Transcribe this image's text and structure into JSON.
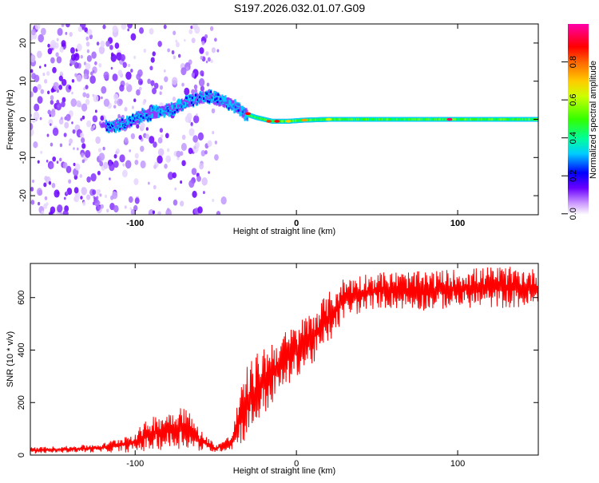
{
  "figure": {
    "title": "S197.2026.032.01.07.G09"
  },
  "chart_data": [
    {
      "type": "heatmap",
      "xlabel": "Height of straight line (km)",
      "ylabel": "Frequency (Hz)",
      "xlim": [
        -165,
        150
      ],
      "ylim": [
        -25,
        25
      ],
      "xticks": [
        -100,
        0,
        100
      ],
      "yticks": [
        20,
        10,
        0,
        -10,
        -20
      ],
      "colorbar": {
        "label": "Normalized spectral amplitude",
        "range": [
          0,
          1
        ],
        "ticks": [
          0.0,
          0.2,
          0.4,
          0.6,
          0.8
        ],
        "colors": [
          "#ffffff",
          "#cc99ff",
          "#6a00ff",
          "#0000ff",
          "#00ccff",
          "#00ff66",
          "#66ff00",
          "#ffff00",
          "#ff9900",
          "#ff0000",
          "#ff0066",
          "#ff00aa"
        ]
      },
      "ridge": {
        "description_free_values": true,
        "points": [
          {
            "x": -115,
            "y": -2
          },
          {
            "x": -105,
            "y": -1
          },
          {
            "x": -95,
            "y": 1
          },
          {
            "x": -85,
            "y": 2
          },
          {
            "x": -75,
            "y": 3
          },
          {
            "x": -65,
            "y": 5
          },
          {
            "x": -55,
            "y": 6
          },
          {
            "x": -48,
            "y": 5
          },
          {
            "x": -40,
            "y": 4
          },
          {
            "x": -32,
            "y": 1.5
          },
          {
            "x": -25,
            "y": 0.5
          },
          {
            "x": -15,
            "y": -0.5
          },
          {
            "x": -5,
            "y": -0.5
          },
          {
            "x": 5,
            "y": -0.2
          },
          {
            "x": 20,
            "y": 0
          },
          {
            "x": 60,
            "y": 0
          },
          {
            "x": 100,
            "y": 0
          },
          {
            "x": 150,
            "y": 0
          }
        ],
        "peak_amplitude": 0.95,
        "peak_x": 95
      },
      "grid": false
    },
    {
      "type": "line",
      "xlabel": "Height of straight line (km)",
      "ylabel": "SNR (10 * v/v)",
      "xlim": [
        -165,
        150
      ],
      "ylim": [
        0,
        730
      ],
      "xticks": [
        -100,
        0,
        100
      ],
      "yticks": [
        0,
        200,
        400,
        600
      ],
      "color": "#ff0000",
      "series": [
        {
          "envelope": [
            {
              "x": -165,
              "lo": 5,
              "hi": 30
            },
            {
              "x": -140,
              "lo": 10,
              "hi": 35
            },
            {
              "x": -120,
              "lo": 10,
              "hi": 45
            },
            {
              "x": -100,
              "lo": 10,
              "hi": 90
            },
            {
              "x": -90,
              "lo": 15,
              "hi": 150
            },
            {
              "x": -80,
              "lo": 20,
              "hi": 170
            },
            {
              "x": -70,
              "lo": 25,
              "hi": 200
            },
            {
              "x": -60,
              "lo": 15,
              "hi": 100
            },
            {
              "x": -50,
              "lo": 10,
              "hi": 40
            },
            {
              "x": -40,
              "lo": 20,
              "hi": 80
            },
            {
              "x": -35,
              "lo": 40,
              "hi": 250
            },
            {
              "x": -30,
              "lo": 60,
              "hi": 350
            },
            {
              "x": -20,
              "lo": 150,
              "hi": 420
            },
            {
              "x": -10,
              "lo": 230,
              "hi": 460
            },
            {
              "x": 0,
              "lo": 300,
              "hi": 500
            },
            {
              "x": 10,
              "lo": 340,
              "hi": 560
            },
            {
              "x": 20,
              "lo": 420,
              "hi": 620
            },
            {
              "x": 30,
              "lo": 520,
              "hi": 680
            },
            {
              "x": 50,
              "lo": 560,
              "hi": 700
            },
            {
              "x": 80,
              "lo": 550,
              "hi": 700
            },
            {
              "x": 100,
              "lo": 560,
              "hi": 710
            },
            {
              "x": 125,
              "lo": 560,
              "hi": 720
            },
            {
              "x": 150,
              "lo": 560,
              "hi": 710
            }
          ]
        }
      ],
      "grid": false
    }
  ]
}
